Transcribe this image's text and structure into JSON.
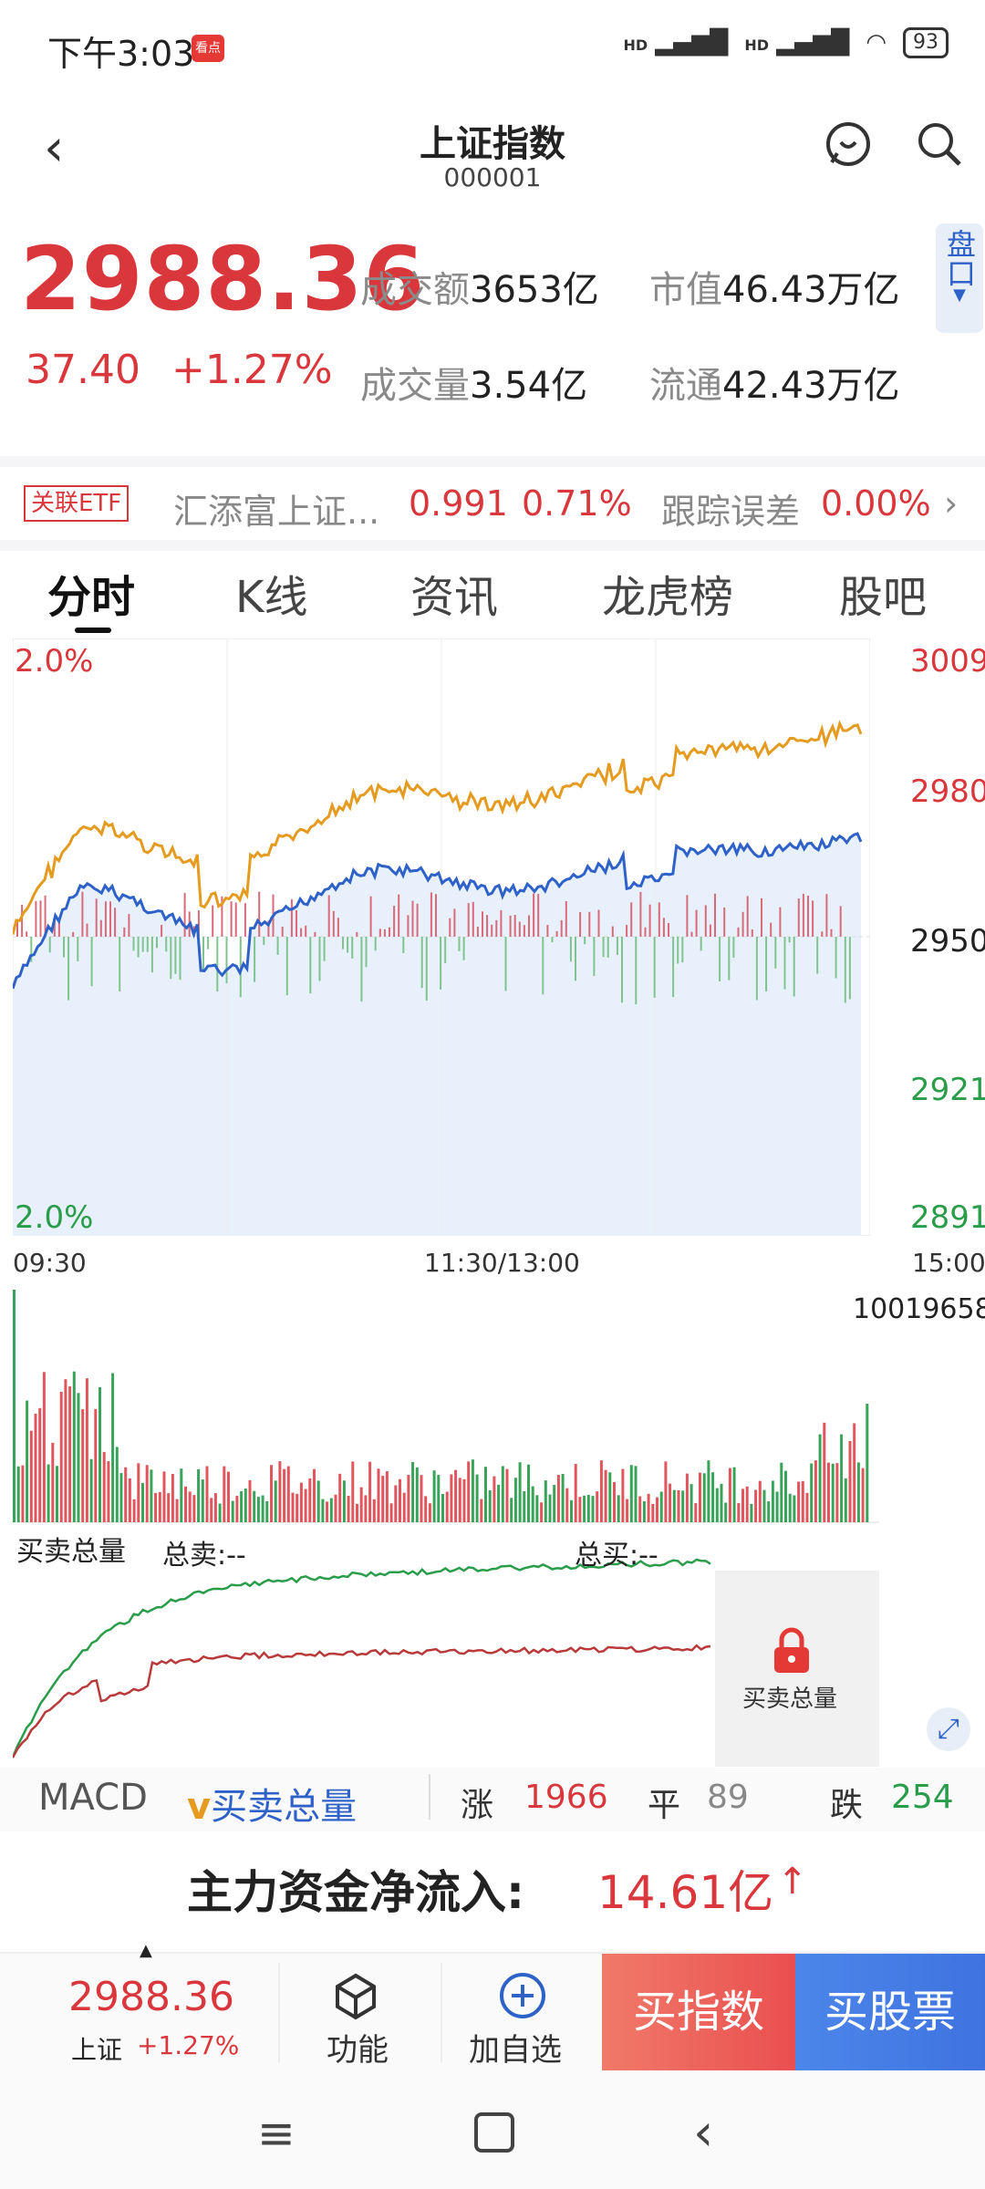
{
  "status": {
    "time": "下午3:03",
    "app_badge": "看点",
    "signal1": "HD",
    "signal2": "HD",
    "battery": "93"
  },
  "header": {
    "title": "上证指数",
    "code": "000001"
  },
  "quote": {
    "price": "2988.36",
    "change": "37.40",
    "change_pct": "+1.27%",
    "turnover_label": "成交额",
    "turnover": "3653亿",
    "volume_label": "成交量",
    "volume": "3.54亿",
    "mktcap_label": "市值",
    "mktcap": "46.43万亿",
    "float_label": "流通",
    "float": "42.43万亿",
    "pankou": "盘口"
  },
  "etf": {
    "tag": "关联ETF",
    "name": "汇添富上证...",
    "price": "0.991",
    "pct": "0.71%",
    "tracking_label": "跟踪误差",
    "tracking": "0.00%"
  },
  "tabs": [
    "分时",
    "K线",
    "资讯",
    "龙虎榜",
    "股吧"
  ],
  "chart": {
    "left_top": "2.0%",
    "left_bottom": "2.0%",
    "right_ticks": [
      "3009",
      "2980",
      "2950",
      "2921",
      "2891"
    ],
    "time_ticks": [
      "09:30",
      "11:30/13:00",
      "15:00"
    ],
    "volume_max": "10019658",
    "bs_title": "买卖总量",
    "bs_sell": "总卖:--",
    "bs_buy": "总买:--",
    "lock_label": "买卖总量"
  },
  "indicator_row": {
    "macd": "MACD",
    "selected": "买卖总量",
    "up_label": "涨",
    "up": "1966",
    "flat_label": "平",
    "flat": "89",
    "down_label": "跌",
    "down": "254"
  },
  "inflow": {
    "label": "主力资金净流入:",
    "value": "14.61亿"
  },
  "bottom": {
    "price": "2988.36",
    "name": "上证",
    "pct": "+1.27%",
    "func": "功能",
    "add": "加自选",
    "buy_index": "买指数",
    "buy_stock": "买股票"
  },
  "colors": {
    "red": "#d9373b",
    "green": "#2a9d4a",
    "blue": "#2f62c8",
    "orange": "#e49b1f"
  }
}
